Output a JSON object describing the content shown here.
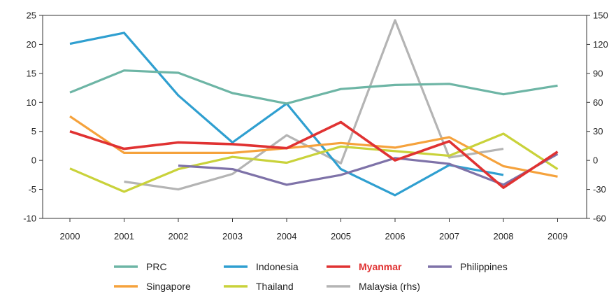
{
  "chart_data": {
    "type": "line",
    "title": "",
    "xlabel": "",
    "ylabel": "",
    "categories": [
      "2000",
      "2001",
      "2002",
      "2003",
      "2004",
      "2005",
      "2006",
      "2007",
      "2008",
      "2009"
    ],
    "ylim": [
      -10,
      25
    ],
    "y_ticks": [
      -10,
      -5,
      0,
      5,
      10,
      15,
      20,
      25
    ],
    "y2lim": [
      -60,
      150
    ],
    "y2_ticks": [
      -60,
      -30,
      0,
      30,
      60,
      90,
      120,
      150
    ],
    "grid": false,
    "legend_position": "bottom",
    "series": [
      {
        "name": "PRC",
        "color": "#6db5a5",
        "axis": "left",
        "highlight": false,
        "values": [
          11.7,
          15.5,
          15.1,
          11.6,
          9.8,
          12.3,
          13.0,
          13.2,
          11.4,
          12.9
        ]
      },
      {
        "name": "Indonesia",
        "color": "#2f9fd0",
        "axis": "left",
        "highlight": false,
        "values": [
          20.1,
          22.0,
          11.2,
          3.1,
          9.8,
          -1.5,
          -6.0,
          -0.8,
          -2.5,
          null
        ]
      },
      {
        "name": "Myanmar",
        "color": "#e03232",
        "axis": "left",
        "highlight": true,
        "values": [
          5.0,
          2.0,
          3.1,
          2.8,
          2.1,
          6.6,
          0.0,
          3.3,
          -4.7,
          1.5
        ]
      },
      {
        "name": "Philippines",
        "color": "#7e72a8",
        "axis": "left",
        "highlight": false,
        "values": [
          null,
          null,
          -0.9,
          -1.5,
          -4.2,
          -2.5,
          0.4,
          -0.6,
          -4.2,
          1.1
        ]
      },
      {
        "name": "Singapore",
        "color": "#f5a23c",
        "axis": "left",
        "highlight": false,
        "values": [
          7.6,
          1.3,
          1.3,
          1.3,
          2.1,
          3.0,
          2.2,
          4.0,
          -1.0,
          -2.8
        ]
      },
      {
        "name": "Thailand",
        "color": "#c9d23a",
        "axis": "left",
        "highlight": false,
        "values": [
          -1.4,
          -5.4,
          -1.5,
          0.6,
          -0.4,
          2.4,
          1.6,
          0.8,
          4.6,
          -1.5
        ]
      },
      {
        "name": "Malaysia (rhs)",
        "color": "#b4b4b4",
        "axis": "right",
        "highlight": false,
        "values": [
          null,
          -22,
          -30,
          -14,
          26,
          -3,
          145,
          3,
          12,
          null
        ]
      }
    ]
  }
}
